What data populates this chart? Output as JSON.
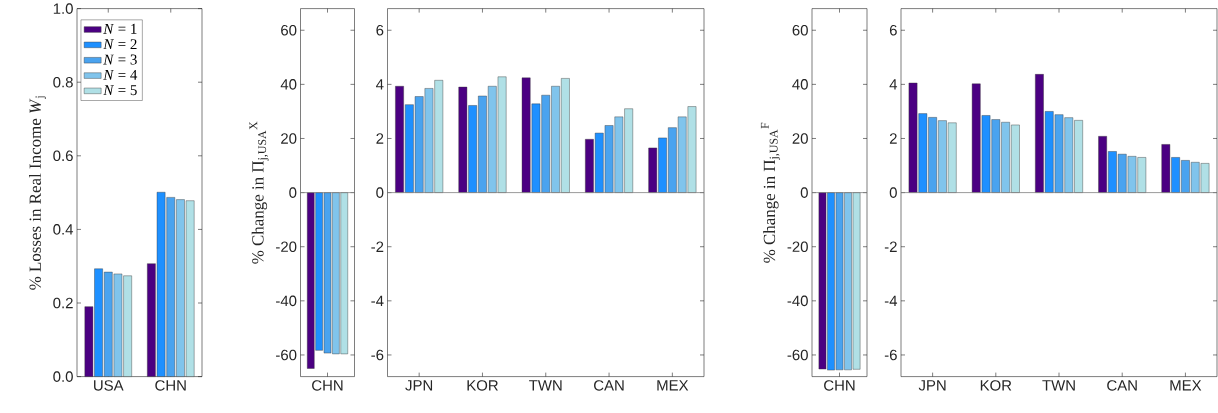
{
  "chart_data": [
    {
      "type": "bar",
      "categories": [
        "USA",
        "CHN"
      ],
      "ylabel": "% Losses in Real Income *W*$_{j}$",
      "ylim": [
        0,
        1
      ],
      "yticks": [
        {
          "value": 0,
          "label": "0.0"
        },
        {
          "value": 0.2,
          "label": "0.2"
        },
        {
          "value": 0.4,
          "label": "0.4"
        },
        {
          "value": 0.6,
          "label": "0.6"
        },
        {
          "value": 0.8,
          "label": "0.8"
        },
        {
          "value": 1,
          "label": "1.0"
        }
      ],
      "legend": "top left",
      "series": [
        {
          "name": "*N* = 1",
          "color": "#4b0082",
          "values": [
            0.19,
            0.307
          ]
        },
        {
          "name": "*N* = 2",
          "color": "#1e90ff",
          "values": [
            0.293,
            0.501
          ]
        },
        {
          "name": "*N* = 3",
          "color": "#4aa3ef",
          "values": [
            0.284,
            0.487
          ]
        },
        {
          "name": "*N* = 4",
          "color": "#80c4ec",
          "values": [
            0.279,
            0.481
          ]
        },
        {
          "name": "*N* = 5",
          "color": "#b0e0e6",
          "values": [
            0.274,
            0.478
          ]
        }
      ]
    },
    {
      "type": "bar",
      "categories": [
        "CHN"
      ],
      "ylabel": "% Change in Π$_{j,USA}$$^{X}$",
      "ylim": [
        -68,
        68
      ],
      "yticks": [
        -60,
        -40,
        -20,
        0,
        20,
        40,
        60
      ],
      "ref_lines": [
        {
          "axis": "y",
          "value": 0,
          "color": "#808080"
        }
      ],
      "series": [
        {
          "color": "#4b0082",
          "values": [
            -65
          ]
        },
        {
          "color": "#1e90ff",
          "values": [
            -58.3
          ]
        },
        {
          "color": "#4aa3ef",
          "values": [
            -59.3
          ]
        },
        {
          "color": "#80c4ec",
          "values": [
            -59.6
          ]
        },
        {
          "color": "#b0e0e6",
          "values": [
            -59.6
          ]
        }
      ]
    },
    {
      "type": "bar",
      "categories": [
        "JPN",
        "KOR",
        "TWN",
        "CAN",
        "MEX"
      ],
      "ylim": [
        -6.8,
        6.8
      ],
      "yticks": [
        -6,
        -4,
        -2,
        0,
        2,
        4,
        6
      ],
      "ref_lines": [
        {
          "axis": "y",
          "value": 0,
          "color": "#808080"
        }
      ],
      "series": [
        {
          "color": "#4b0082",
          "values": [
            3.93,
            3.9,
            4.24,
            1.97,
            1.65
          ]
        },
        {
          "color": "#1e90ff",
          "values": [
            3.25,
            3.22,
            3.28,
            2.2,
            2.02
          ]
        },
        {
          "color": "#4aa3ef",
          "values": [
            3.55,
            3.57,
            3.6,
            2.48,
            2.4
          ]
        },
        {
          "color": "#80c4ec",
          "values": [
            3.85,
            3.93,
            3.93,
            2.8,
            2.8
          ]
        },
        {
          "color": "#b0e0e6",
          "values": [
            4.15,
            4.28,
            4.22,
            3.1,
            3.18
          ]
        }
      ]
    },
    {
      "type": "bar",
      "categories": [
        "CHN"
      ],
      "ylabel": "% Change in Π$_{j,USA}$$^{F}$",
      "ylim": [
        -68,
        68
      ],
      "yticks": [
        -60,
        -40,
        -20,
        0,
        20,
        40,
        60
      ],
      "ref_lines": [
        {
          "axis": "y",
          "value": 0,
          "color": "#808080"
        }
      ],
      "series": [
        {
          "color": "#4b0082",
          "values": [
            -65.2
          ]
        },
        {
          "color": "#1e90ff",
          "values": [
            -65.6
          ]
        },
        {
          "color": "#4aa3ef",
          "values": [
            -65.5
          ]
        },
        {
          "color": "#80c4ec",
          "values": [
            -65.5
          ]
        },
        {
          "color": "#b0e0e6",
          "values": [
            -65.3
          ]
        }
      ]
    },
    {
      "type": "bar",
      "categories": [
        "JPN",
        "KOR",
        "TWN",
        "CAN",
        "MEX"
      ],
      "ylim": [
        -6.8,
        6.8
      ],
      "yticks": [
        -6,
        -4,
        -2,
        0,
        2,
        4,
        6
      ],
      "ref_lines": [
        {
          "axis": "y",
          "value": 0,
          "color": "#808080"
        }
      ],
      "series": [
        {
          "color": "#4b0082",
          "values": [
            4.05,
            4.02,
            4.37,
            2.08,
            1.78
          ]
        },
        {
          "color": "#1e90ff",
          "values": [
            2.92,
            2.85,
            3.0,
            1.52,
            1.3
          ]
        },
        {
          "color": "#4aa3ef",
          "values": [
            2.78,
            2.7,
            2.88,
            1.42,
            1.19
          ]
        },
        {
          "color": "#80c4ec",
          "values": [
            2.66,
            2.6,
            2.77,
            1.34,
            1.12
          ]
        },
        {
          "color": "#b0e0e6",
          "values": [
            2.58,
            2.5,
            2.67,
            1.3,
            1.08
          ]
        }
      ]
    }
  ]
}
